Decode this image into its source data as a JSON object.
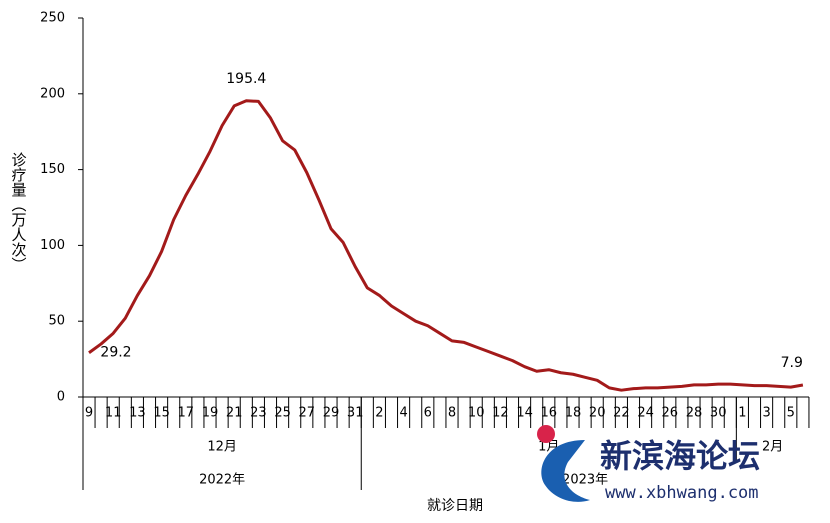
{
  "chart_data": {
    "type": "line",
    "y_label": "诊疗量（万人次）",
    "x_label": "就诊日期",
    "categories": [
      "9",
      null,
      "11",
      null,
      "13",
      null,
      "15",
      null,
      "17",
      null,
      "19",
      null,
      "21",
      null,
      "23",
      null,
      "25",
      null,
      "27",
      null,
      "29",
      null,
      "31",
      null,
      "2",
      null,
      "4",
      null,
      "6",
      null,
      "8",
      null,
      "10",
      null,
      "12",
      null,
      "14",
      null,
      "16",
      null,
      "18",
      null,
      "20",
      null,
      "22",
      null,
      "24",
      null,
      "26",
      null,
      "28",
      null,
      "30",
      null,
      "1",
      null,
      "3",
      null,
      "5",
      null
    ],
    "months": [
      "12月",
      "1月",
      "2月"
    ],
    "years": [
      "2022年",
      "2023年"
    ],
    "series": [
      {
        "name": "诊疗量",
        "color": "#a31a1a",
        "values": [
          29.2,
          35,
          42,
          52,
          67,
          80,
          96,
          117,
          133,
          147,
          162,
          179,
          192,
          195.4,
          195,
          184,
          169,
          163,
          148,
          130,
          111,
          102,
          86,
          72,
          67,
          60,
          55,
          50,
          47,
          42,
          37,
          36,
          33,
          30,
          27,
          24,
          20,
          17,
          18,
          16,
          15,
          13,
          11,
          6,
          4.5,
          5.5,
          6,
          6,
          6.5,
          7,
          8,
          8,
          8.5,
          8.5,
          8,
          7.5,
          7.5,
          7,
          6.5,
          7.9
        ],
        "value_labels": [
          "29.2",
          null,
          null,
          null,
          null,
          null,
          null,
          null,
          null,
          null,
          null,
          null,
          null,
          "195.4",
          null,
          null,
          null,
          null,
          null,
          null,
          null,
          null,
          null,
          null,
          null,
          null,
          null,
          null,
          null,
          null,
          null,
          null,
          null,
          null,
          null,
          null,
          null,
          null,
          null,
          null,
          null,
          null,
          null,
          null,
          null,
          null,
          null,
          null,
          null,
          null,
          null,
          null,
          null,
          null,
          null,
          null,
          null,
          null,
          null,
          "7.9"
        ]
      }
    ],
    "ylim": [
      0,
      250
    ],
    "yticks": [
      0,
      50,
      100,
      150,
      200,
      250
    ]
  },
  "watermark": {
    "name": "新滨海论坛",
    "url": "www.xbhwang.com"
  }
}
